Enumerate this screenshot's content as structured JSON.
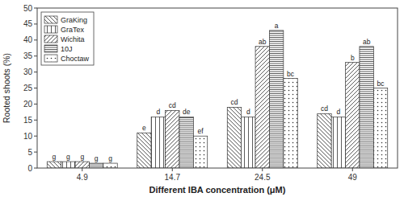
{
  "chart_data": {
    "type": "bar",
    "categories": [
      "4.9",
      "14.7",
      "24.5",
      "49"
    ],
    "series": [
      {
        "name": "GraKing",
        "color": "white",
        "values": [
          2.0,
          11.0,
          19.0,
          17.0
        ],
        "annotations": [
          "g",
          "e",
          "cd",
          "cd"
        ]
      },
      {
        "name": "GraTex",
        "color": "white",
        "values": [
          2.0,
          16.0,
          16.0,
          16.0
        ],
        "annotations": [
          "g",
          "d",
          "d",
          "d"
        ]
      },
      {
        "name": "Wichita",
        "color": "white",
        "values": [
          2.0,
          18.0,
          38.0,
          33.0
        ],
        "annotations": [
          "g",
          "cd",
          "ab",
          "b"
        ]
      },
      {
        "name": "10J",
        "color": "white",
        "values": [
          1.5,
          16.0,
          43.0,
          38.0
        ],
        "annotations": [
          "g",
          "de",
          "a",
          "ab"
        ]
      },
      {
        "name": "Choctaw",
        "color": "white",
        "values": [
          1.5,
          10.0,
          28.0,
          25.0
        ],
        "annotations": [
          "g",
          "ef",
          "bc",
          "bc"
        ]
      }
    ],
    "x_label": "Different IBA concentration (μM)",
    "y_label": "Rooted shoots (%)",
    "ylim": [
      0,
      50
    ],
    "yticks": [
      0,
      5,
      10,
      15,
      20,
      25,
      30,
      35,
      40,
      45,
      50
    ],
    "grid": false,
    "legend": "upper left"
  }
}
